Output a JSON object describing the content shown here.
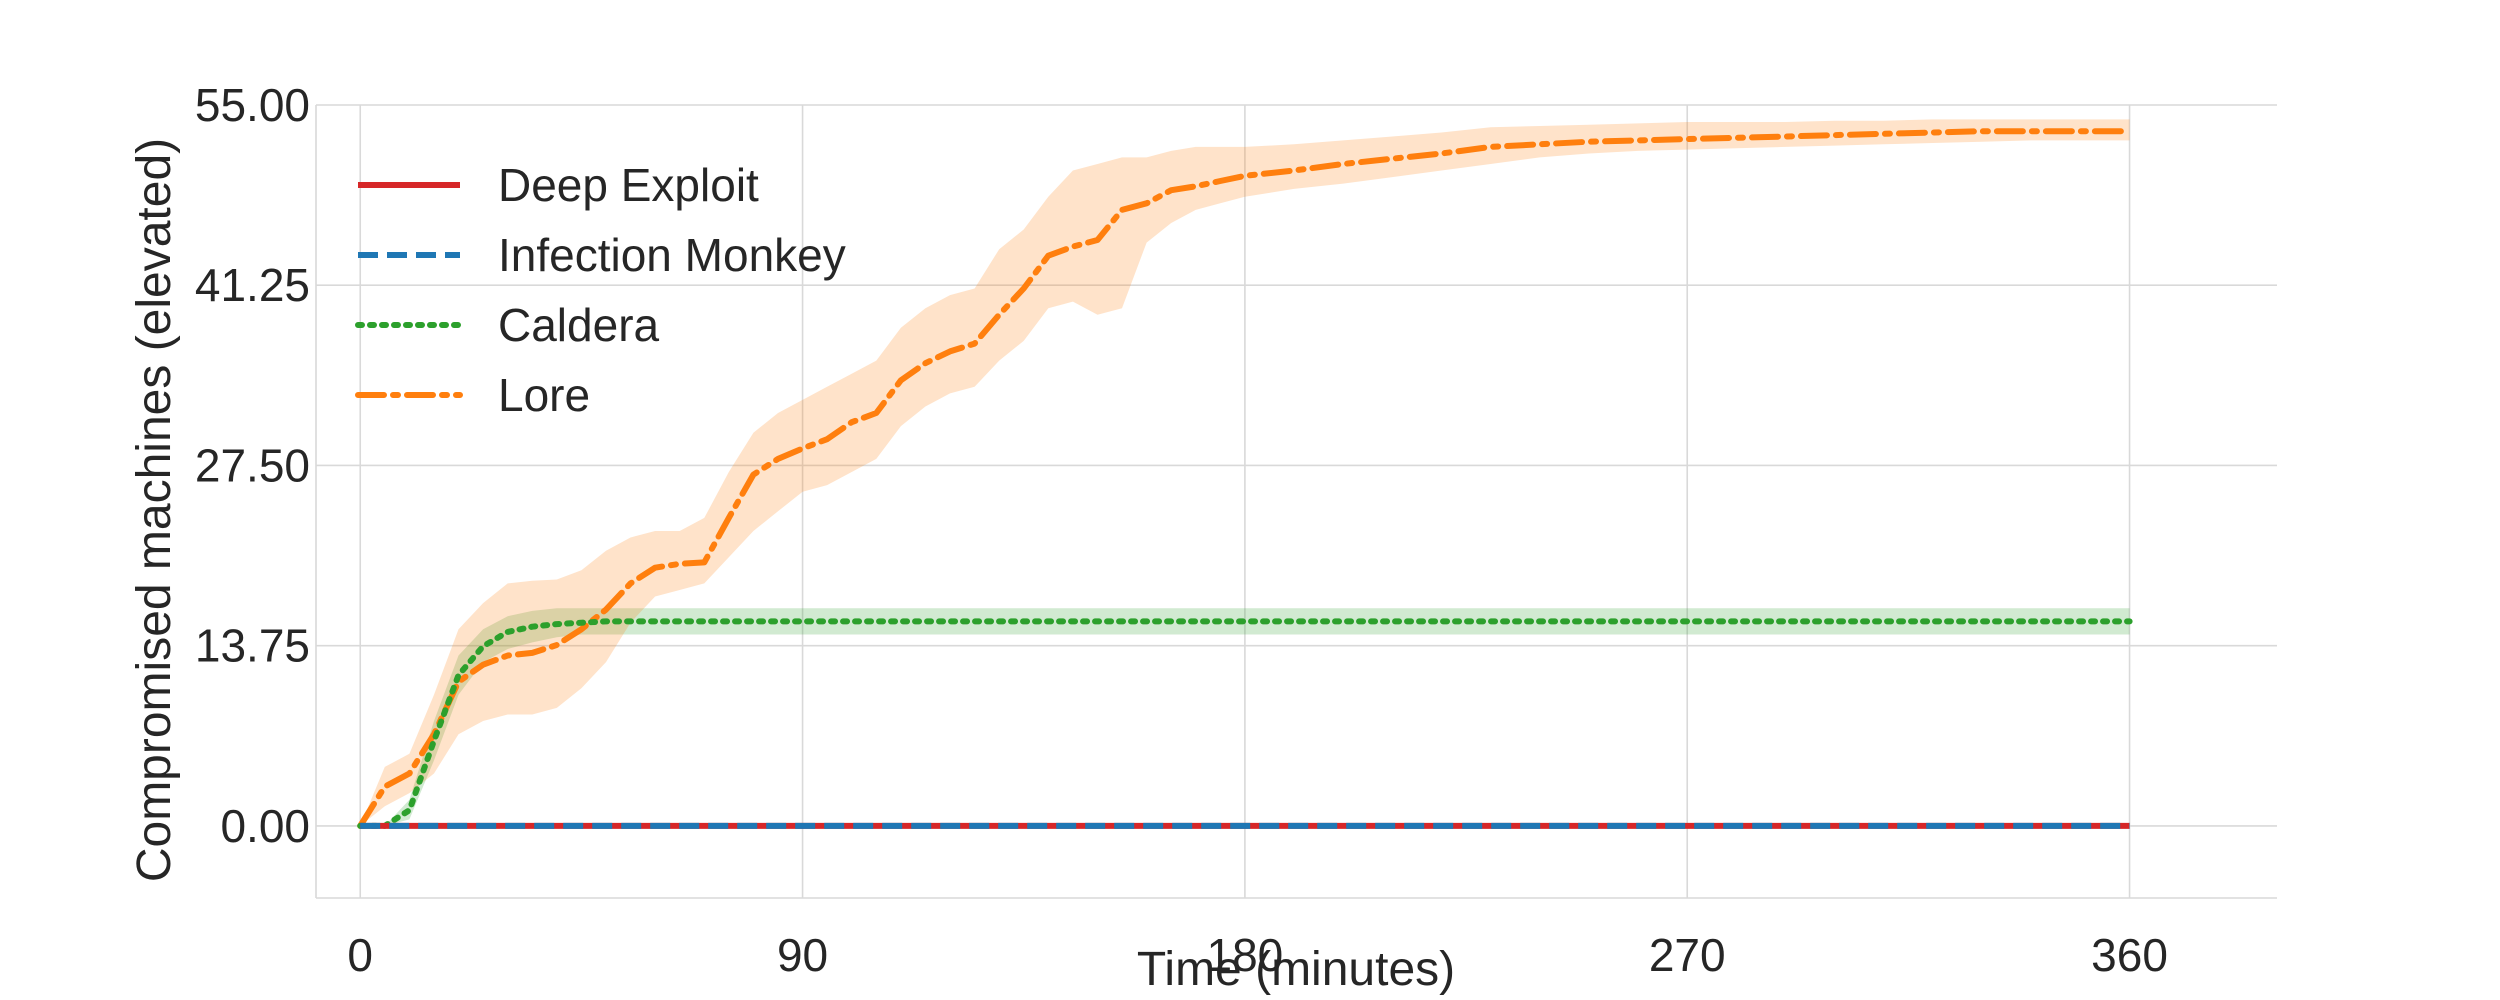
{
  "chart_data": {
    "type": "line",
    "title": "",
    "xlabel": "Time (minutes)",
    "ylabel": "Compromised machines (elevated)",
    "xlim": [
      -9,
      390
    ],
    "ylim": [
      -5.5,
      55
    ],
    "xticks": [
      0,
      90,
      180,
      270,
      360
    ],
    "yticks": [
      0,
      13.75,
      27.5,
      41.25,
      55
    ],
    "xtick_labels": [
      "0",
      "90",
      "180",
      "270",
      "360"
    ],
    "ytick_labels": [
      "0.00",
      "13.75",
      "27.50",
      "41.25",
      "55.00"
    ],
    "grid": true,
    "legend_position": "top-left",
    "series": [
      {
        "name": "Deep Exploit",
        "color": "#d62728",
        "style": "solid",
        "x": [
          0,
          360
        ],
        "y": [
          0,
          0
        ],
        "band_low": [],
        "band_high": []
      },
      {
        "name": "Infection Monkey",
        "color": "#1f77b4",
        "style": "dashed",
        "x": [
          0,
          360
        ],
        "y": [
          0,
          0
        ],
        "band_low": [],
        "band_high": []
      },
      {
        "name": "Caldera",
        "color": "#2ca02c",
        "style": "dotted",
        "x": [
          0,
          5,
          10,
          15,
          20,
          25,
          30,
          35,
          40,
          45,
          50,
          360
        ],
        "y": [
          0,
          0,
          1.2,
          6.5,
          11.5,
          13.7,
          14.8,
          15.2,
          15.4,
          15.5,
          15.6,
          15.6
        ],
        "band_low": [
          0,
          0,
          0.5,
          5,
          10,
          12.5,
          13.5,
          14,
          14.4,
          14.6,
          14.6,
          14.6
        ],
        "band_high": [
          0,
          0,
          2,
          8,
          13,
          15,
          16,
          16.4,
          16.6,
          16.6,
          16.6,
          16.6
        ]
      },
      {
        "name": "Lore",
        "color": "#ff7f0e",
        "style": "dashdot",
        "x": [
          0,
          5,
          10,
          15,
          20,
          25,
          30,
          35,
          40,
          45,
          50,
          55,
          60,
          65,
          70,
          75,
          80,
          85,
          90,
          95,
          100,
          105,
          110,
          115,
          120,
          125,
          130,
          135,
          140,
          145,
          150,
          155,
          160,
          165,
          170,
          175,
          180,
          190,
          200,
          210,
          220,
          230,
          240,
          250,
          260,
          270,
          280,
          290,
          300,
          310,
          320,
          330,
          340,
          350,
          360
        ],
        "y": [
          0,
          3,
          4,
          7,
          11,
          12.3,
          13,
          13.2,
          13.8,
          15,
          16.5,
          18.5,
          19.7,
          20,
          20.1,
          23.5,
          26.8,
          28,
          28.8,
          29.5,
          30.8,
          31.5,
          34,
          35.3,
          36.2,
          36.8,
          39,
          41,
          43.5,
          44.2,
          44.7,
          47,
          47.5,
          48.5,
          48.8,
          49.2,
          49.6,
          50,
          50.5,
          50.9,
          51.3,
          51.8,
          52,
          52.2,
          52.3,
          52.4,
          52.5,
          52.6,
          52.7,
          52.8,
          52.9,
          53,
          53,
          53,
          53
        ],
        "band_low": [
          0,
          1.5,
          2.5,
          4,
          7,
          8,
          8.5,
          8.5,
          9,
          10.5,
          12.5,
          15.5,
          17.5,
          18,
          18.5,
          20.5,
          22.5,
          24,
          25.5,
          26,
          27,
          28,
          30.5,
          32,
          33,
          33.5,
          35.5,
          37,
          39.5,
          40,
          39,
          39.5,
          44.5,
          46,
          47,
          47.5,
          48,
          48.6,
          49,
          49.5,
          50,
          50.5,
          51,
          51.3,
          51.5,
          51.6,
          51.7,
          51.8,
          51.9,
          52,
          52.1,
          52.2,
          52.3,
          52.3,
          52.3
        ],
        "band_high": [
          0,
          4.5,
          5.5,
          10,
          15,
          17,
          18.5,
          18.7,
          18.8,
          19.5,
          21,
          22,
          22.5,
          22.5,
          23.5,
          27,
          30,
          31.5,
          32.5,
          33.5,
          34.5,
          35.5,
          38,
          39.5,
          40.5,
          41,
          44,
          45.5,
          48,
          50,
          50.5,
          51,
          51,
          51.5,
          51.8,
          51.8,
          51.8,
          52,
          52.3,
          52.6,
          52.9,
          53.3,
          53.4,
          53.5,
          53.6,
          53.7,
          53.7,
          53.7,
          53.8,
          53.8,
          53.9,
          53.9,
          53.9,
          53.9,
          53.9
        ]
      }
    ]
  }
}
